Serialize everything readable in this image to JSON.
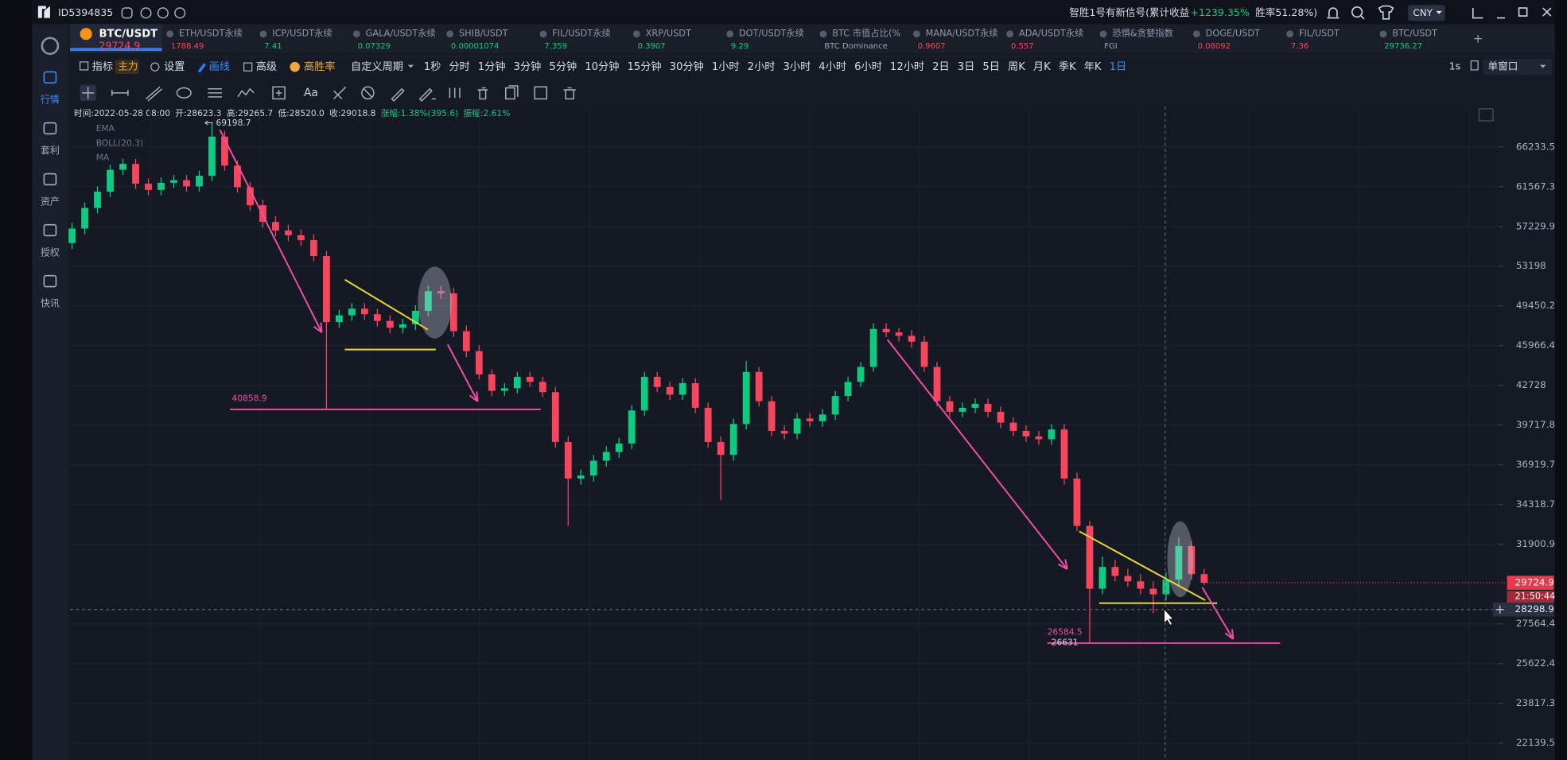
{
  "top_bar": {
    "account_id": "ID5394835",
    "signal_prefix": "智胜1号有新信号(累计收益",
    "signal_gain": "+1239.35%",
    "signal_win": "胜率51.28%)",
    "currency": "CNY"
  },
  "sidebar": [
    "行情",
    "套利",
    "资产",
    "授权",
    "快讯"
  ],
  "tickers": [
    {
      "name": "BTC/USDT",
      "price": "29724.9",
      "color": "#f6465d"
    },
    {
      "name": "ETH/USDT永续",
      "price": "1788.49",
      "color": "#f6465d"
    },
    {
      "name": "ICP/USDT永续",
      "price": "7.41",
      "color": "#0ecb81"
    },
    {
      "name": "GALA/USDT永续",
      "price": "0.07329",
      "color": "#0ecb81"
    },
    {
      "name": "SHIB/USDT",
      "price": "0.00001074",
      "color": "#0ecb81"
    },
    {
      "name": "FIL/USDT永续",
      "price": "7.359",
      "color": "#0ecb81"
    },
    {
      "name": "XRP/USDT",
      "price": "0.3907",
      "color": "#0ecb81"
    },
    {
      "name": "DOT/USDT永续",
      "price": "9.29",
      "color": "#0ecb81"
    },
    {
      "name": "BTC 市值占比(%",
      "price": "BTC Dominance",
      "color": "#9aa3b5"
    },
    {
      "name": "MANA/USDT永续",
      "price": "0.9607",
      "color": "#f6465d"
    },
    {
      "name": "ADA/USDT永续",
      "price": "0.557",
      "color": "#f6465d"
    },
    {
      "name": "恐惧&贪婪指数",
      "price": "FGI",
      "color": "#9aa3b5"
    },
    {
      "name": "DOGE/USDT",
      "price": "0.08092",
      "color": "#f6465d"
    },
    {
      "name": "FIL/USDT",
      "price": "7.36",
      "color": "#f6465d"
    },
    {
      "name": "BTC/USDT",
      "price": "29736.27",
      "color": "#0ecb81"
    }
  ],
  "toolbar": {
    "indicator": "指标",
    "main": "主力",
    "settings": "设置",
    "draw": "画线",
    "advanced": "高级",
    "win_rate": "高胜率",
    "custom_period": "自定义周期",
    "intervals": [
      "1秒",
      "分时",
      "1分钟",
      "3分钟",
      "5分钟",
      "10分钟",
      "15分钟",
      "30分钟",
      "1小时",
      "2小时",
      "3小时",
      "4小时",
      "6小时",
      "12小时",
      "2日",
      "3日",
      "5日",
      "周K",
      "月K",
      "季K",
      "年K",
      "1日"
    ],
    "refresh": "1s",
    "window": "单窗口"
  },
  "draw_tools": {
    "text_tool": "Aa"
  },
  "info_bar": {
    "time": "时间:2022-05-28 08:00",
    "open": "开:28623.3",
    "high": "高:29265.7",
    "low": "低:28520.0",
    "close": "收:29018.8",
    "change": "涨幅:1.38%(395.6)",
    "amplitude": "振幅:2.61%"
  },
  "indicators": [
    "EMA",
    "BOLL(20,3)",
    "MA"
  ],
  "chart_data": {
    "type": "candlestick",
    "log_scale": true,
    "grid": true,
    "up_color": "#0ecb81",
    "down_color": "#f6465d",
    "ylim": [
      21460,
      71290
    ],
    "yticks": [
      66233.5,
      61567.3,
      57229.9,
      53198.0,
      49450.2,
      45966.4,
      42728.0,
      39717.8,
      36919.7,
      34318.7,
      31900.9,
      27564.4,
      25622.4,
      23817.3,
      22139.5
    ],
    "countdown": "21:50:44",
    "crosshair_price": 28298.9,
    "price_labels": [
      69198.7,
      40858.9,
      26584.5,
      26631
    ],
    "candles": [
      [
        55500,
        57600,
        54900,
        57000
      ],
      [
        57000,
        59800,
        56400,
        59200
      ],
      [
        59200,
        61600,
        58600,
        61000
      ],
      [
        61000,
        64100,
        60400,
        63500
      ],
      [
        63500,
        64800,
        62900,
        64200
      ],
      [
        64200,
        64800,
        61300,
        61900
      ],
      [
        61900,
        62500,
        60600,
        61200
      ],
      [
        61200,
        62600,
        60600,
        62000
      ],
      [
        62000,
        62900,
        61400,
        62300
      ],
      [
        62300,
        62900,
        61000,
        61600
      ],
      [
        61600,
        63400,
        61000,
        62800
      ],
      [
        62800,
        69198.7,
        62200,
        67500
      ],
      [
        67500,
        68200,
        63400,
        64000
      ],
      [
        64000,
        64600,
        60900,
        61500
      ],
      [
        61500,
        62100,
        58900,
        59500
      ],
      [
        59500,
        60100,
        57100,
        57700
      ],
      [
        57700,
        58300,
        56200,
        56800
      ],
      [
        56800,
        57400,
        55700,
        56300
      ],
      [
        56300,
        56900,
        55200,
        55800
      ],
      [
        55800,
        56400,
        53700,
        54200
      ],
      [
        54200,
        54700,
        40858.9,
        48000
      ],
      [
        48000,
        49100,
        47500,
        48600
      ],
      [
        48600,
        49700,
        48100,
        49200
      ],
      [
        49200,
        49700,
        48200,
        48700
      ],
      [
        48700,
        49200,
        47600,
        48100
      ],
      [
        48100,
        48600,
        47000,
        47500
      ],
      [
        47500,
        48300,
        47000,
        47800
      ],
      [
        47800,
        49500,
        47300,
        49000
      ],
      [
        49000,
        51300,
        48500,
        50800
      ],
      [
        50800,
        51300,
        50100,
        50600
      ],
      [
        50600,
        51100,
        46700,
        47200
      ],
      [
        47200,
        47700,
        45000,
        45500
      ],
      [
        45500,
        46000,
        43200,
        43600
      ],
      [
        43600,
        44000,
        41900,
        42300
      ],
      [
        42300,
        42900,
        41900,
        42500
      ],
      [
        42500,
        43800,
        42100,
        43400
      ],
      [
        43400,
        43800,
        42600,
        43000
      ],
      [
        43000,
        43400,
        41800,
        42200
      ],
      [
        42200,
        42600,
        38100,
        38500
      ],
      [
        38500,
        38900,
        33000,
        36000
      ],
      [
        36000,
        36600,
        35600,
        36200
      ],
      [
        36200,
        37600,
        35800,
        37200
      ],
      [
        37200,
        38200,
        36800,
        37800
      ],
      [
        37800,
        38800,
        37400,
        38400
      ],
      [
        38400,
        41200,
        38000,
        40800
      ],
      [
        40800,
        43800,
        40400,
        43400
      ],
      [
        43400,
        43800,
        42200,
        42600
      ],
      [
        42600,
        43000,
        41600,
        42000
      ],
      [
        42000,
        43300,
        41600,
        42900
      ],
      [
        42900,
        43300,
        40600,
        41000
      ],
      [
        41000,
        41400,
        38100,
        38500
      ],
      [
        38500,
        38900,
        34600,
        37600
      ],
      [
        37600,
        40200,
        37200,
        39800
      ],
      [
        39800,
        44700,
        39400,
        43800
      ],
      [
        43800,
        44200,
        41100,
        41500
      ],
      [
        41500,
        41900,
        38900,
        39300
      ],
      [
        39300,
        39700,
        38700,
        39100
      ],
      [
        39100,
        40600,
        38700,
        40200
      ],
      [
        40200,
        40600,
        39600,
        40000
      ],
      [
        40000,
        40900,
        39600,
        40500
      ],
      [
        40500,
        42300,
        40100,
        41900
      ],
      [
        41900,
        43400,
        41500,
        43000
      ],
      [
        43000,
        44600,
        42600,
        44200
      ],
      [
        44200,
        47900,
        43800,
        47400
      ],
      [
        47400,
        47900,
        46700,
        47100
      ],
      [
        47100,
        47500,
        46300,
        46800
      ],
      [
        46800,
        47300,
        45800,
        46300
      ],
      [
        46300,
        46800,
        43800,
        44200
      ],
      [
        44200,
        44600,
        41100,
        41500
      ],
      [
        41500,
        41900,
        40300,
        40700
      ],
      [
        40700,
        41400,
        40300,
        41000
      ],
      [
        41000,
        41700,
        40600,
        41300
      ],
      [
        41300,
        41700,
        40300,
        40700
      ],
      [
        40700,
        41100,
        39500,
        39900
      ],
      [
        39900,
        40300,
        38900,
        39300
      ],
      [
        39300,
        39700,
        38500,
        38900
      ],
      [
        38900,
        39300,
        38300,
        38700
      ],
      [
        38700,
        39800,
        38300,
        39400
      ],
      [
        39400,
        39800,
        35600,
        36000
      ],
      [
        36000,
        36400,
        32700,
        33000
      ],
      [
        33000,
        33300,
        26584.5,
        29400
      ],
      [
        29400,
        31200,
        29100,
        30600
      ],
      [
        30600,
        31000,
        29800,
        30100
      ],
      [
        30100,
        30500,
        29500,
        29800
      ],
      [
        29800,
        30200,
        29100,
        29400
      ],
      [
        29400,
        29800,
        28100,
        29100
      ],
      [
        29100,
        30300,
        28800,
        29900
      ],
      [
        29900,
        32300,
        29600,
        31800
      ],
      [
        31800,
        32100,
        29900,
        30200
      ],
      [
        30200,
        30500,
        29600,
        29724.9
      ]
    ]
  }
}
